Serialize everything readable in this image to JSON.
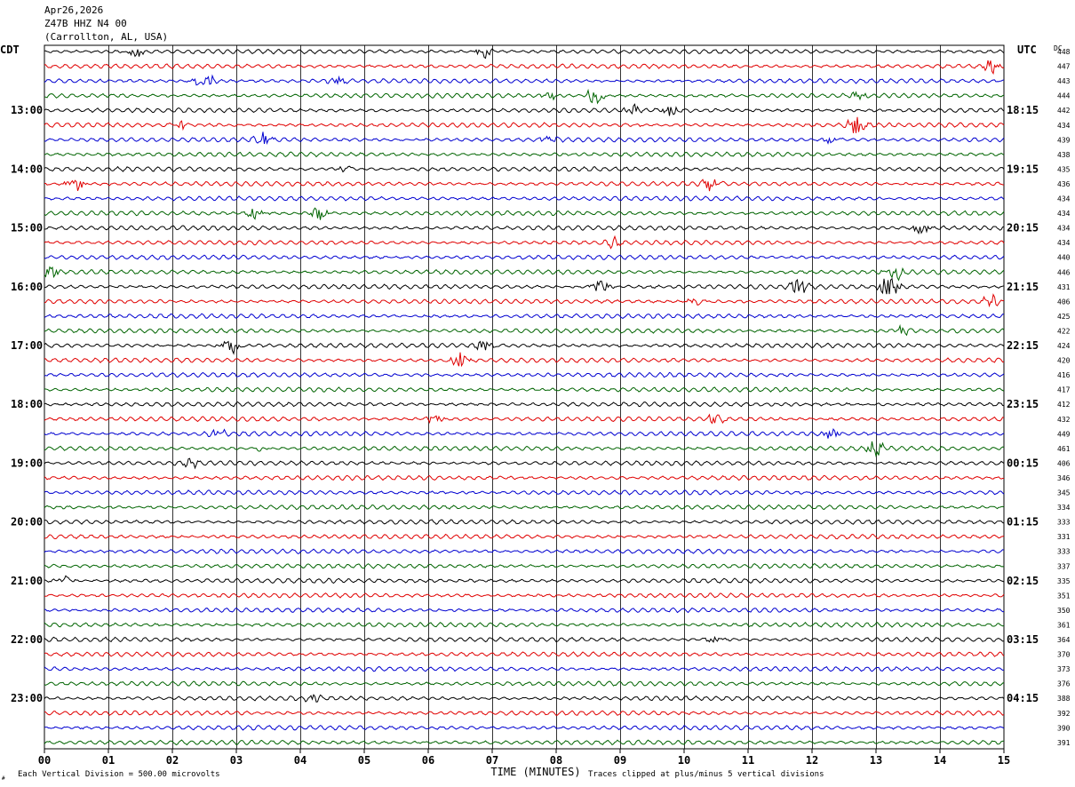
{
  "header": {
    "date": "Apr26,2026",
    "station": "Z47B HHZ N4 00",
    "location": "(Carrollton, AL, USA)"
  },
  "left_timezone": "CDT",
  "right_timezone": "UTC",
  "dc_label": "DC",
  "footer": {
    "scale": "Each Vertical Division =  500.00 microvolts",
    "xlabel": "TIME (MINUTES)",
    "clip_note": "Traces clipped at plus/minus 5 vertical divisions",
    "corner_mark": "#"
  },
  "colors": {
    "black": "#000000",
    "red": "#e00000",
    "blue": "#0000d0",
    "green": "#006400",
    "grid": "#000000"
  },
  "chart_data": {
    "type": "line",
    "title": "Z47B HHZ N4 00",
    "xlabel": "TIME (MINUTES)",
    "xlim": [
      0,
      15
    ],
    "x_ticks": [
      "00",
      "01",
      "02",
      "03",
      "04",
      "05",
      "06",
      "07",
      "08",
      "09",
      "10",
      "11",
      "12",
      "13",
      "14",
      "15"
    ],
    "trace_interval_minutes": 15,
    "trace_colors": [
      "black",
      "red",
      "blue",
      "green"
    ],
    "left_hour_labels": [
      "13:00",
      "14:00",
      "15:00",
      "16:00",
      "17:00",
      "18:00",
      "19:00",
      "20:00",
      "21:00",
      "22:00",
      "23:00"
    ],
    "right_hour_labels": [
      "18:15",
      "19:15",
      "20:15",
      "21:15",
      "22:15",
      "23:15",
      "00:15",
      "01:15",
      "02:15",
      "03:15",
      "04:15"
    ],
    "dc_offsets": [
      448,
      447,
      443,
      444,
      442,
      434,
      439,
      438,
      435,
      436,
      434,
      434,
      434,
      434,
      440,
      446,
      431,
      406,
      425,
      422,
      424,
      420,
      416,
      417,
      412,
      432,
      449,
      461,
      406,
      346,
      345,
      334,
      333,
      331,
      333,
      337,
      335,
      351,
      350,
      361,
      364,
      370,
      373,
      376,
      388,
      392,
      390,
      391
    ],
    "events": [
      {
        "trace": 0,
        "minute": 1.4,
        "amp": 1.0
      },
      {
        "trace": 0,
        "minute": 6.9,
        "amp": 1.1
      },
      {
        "trace": 1,
        "minute": 14.8,
        "amp": 0.9
      },
      {
        "trace": 2,
        "minute": 2.5,
        "amp": 1.5
      },
      {
        "trace": 2,
        "minute": 4.6,
        "amp": 0.9
      },
      {
        "trace": 3,
        "minute": 8.6,
        "amp": 1.4
      },
      {
        "trace": 3,
        "minute": 7.9,
        "amp": 0.6
      },
      {
        "trace": 3,
        "minute": 12.7,
        "amp": 0.6
      },
      {
        "trace": 4,
        "minute": 9.8,
        "amp": 1.0
      },
      {
        "trace": 4,
        "minute": 9.2,
        "amp": 0.8
      },
      {
        "trace": 5,
        "minute": 12.7,
        "amp": 1.8
      },
      {
        "trace": 5,
        "minute": 2.1,
        "amp": 0.7
      },
      {
        "trace": 6,
        "minute": 3.4,
        "amp": 1.1
      },
      {
        "trace": 6,
        "minute": 7.9,
        "amp": 0.8
      },
      {
        "trace": 6,
        "minute": 12.3,
        "amp": 0.7
      },
      {
        "trace": 8,
        "minute": 4.7,
        "amp": 0.7
      },
      {
        "trace": 9,
        "minute": 0.5,
        "amp": 1.1
      },
      {
        "trace": 9,
        "minute": 10.4,
        "amp": 1.0
      },
      {
        "trace": 11,
        "minute": 3.3,
        "amp": 1.0
      },
      {
        "trace": 11,
        "minute": 4.3,
        "amp": 1.0
      },
      {
        "trace": 12,
        "minute": 13.7,
        "amp": 0.9
      },
      {
        "trace": 13,
        "minute": 8.9,
        "amp": 0.9
      },
      {
        "trace": 15,
        "minute": 13.3,
        "amp": 1.3
      },
      {
        "trace": 15,
        "minute": 0.1,
        "amp": 0.9
      },
      {
        "trace": 16,
        "minute": 8.7,
        "amp": 1.2
      },
      {
        "trace": 16,
        "minute": 11.8,
        "amp": 1.4
      },
      {
        "trace": 16,
        "minute": 13.2,
        "amp": 2.4
      },
      {
        "trace": 17,
        "minute": 14.8,
        "amp": 0.9
      },
      {
        "trace": 17,
        "minute": 10.2,
        "amp": 0.7
      },
      {
        "trace": 19,
        "minute": 13.4,
        "amp": 0.7
      },
      {
        "trace": 20,
        "minute": 2.9,
        "amp": 1.6
      },
      {
        "trace": 20,
        "minute": 6.9,
        "amp": 1.2
      },
      {
        "trace": 21,
        "minute": 6.5,
        "amp": 1.1
      },
      {
        "trace": 25,
        "minute": 10.5,
        "amp": 1.0
      },
      {
        "trace": 25,
        "minute": 6.1,
        "amp": 0.6
      },
      {
        "trace": 26,
        "minute": 2.7,
        "amp": 0.7
      },
      {
        "trace": 26,
        "minute": 12.3,
        "amp": 0.7
      },
      {
        "trace": 27,
        "minute": 13.0,
        "amp": 1.1
      },
      {
        "trace": 27,
        "minute": 3.4,
        "amp": 0.5
      },
      {
        "trace": 28,
        "minute": 2.3,
        "amp": 0.6
      },
      {
        "trace": 36,
        "minute": 0.3,
        "amp": 0.7
      },
      {
        "trace": 40,
        "minute": 10.5,
        "amp": 0.6
      },
      {
        "trace": 44,
        "minute": 4.2,
        "amp": 0.5
      }
    ]
  }
}
